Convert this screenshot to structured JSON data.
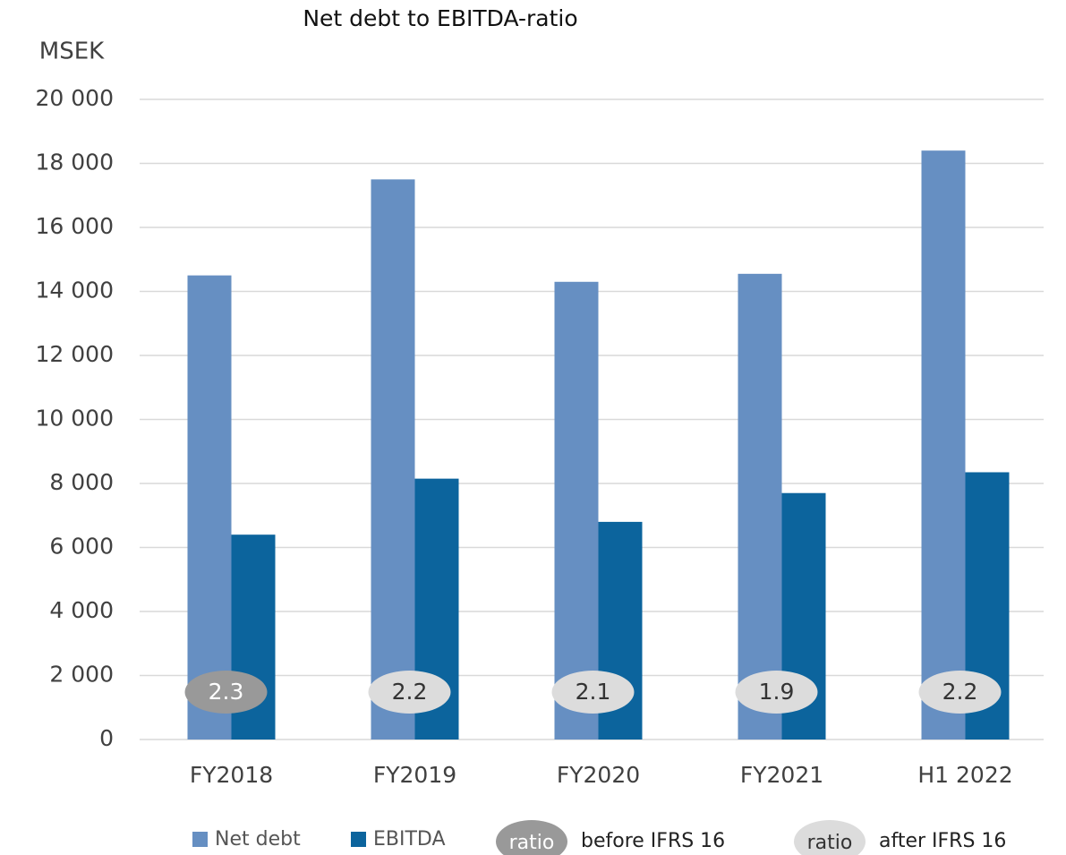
{
  "chart_data": {
    "type": "bar",
    "title": "Net debt to EBITDA-ratio",
    "y_label": "MSEK",
    "categories": [
      "FY2018",
      "FY2019",
      "FY2020",
      "FY2021",
      "H1 2022"
    ],
    "series": [
      {
        "name": "Net debt",
        "color": "#668fc2",
        "values": [
          14500,
          17500,
          14300,
          14550,
          18400
        ]
      },
      {
        "name": "EBITDA",
        "color": "#0c649d",
        "values": [
          6400,
          8150,
          6800,
          7700,
          8350
        ]
      }
    ],
    "ratios": [
      2.3,
      2.2,
      2.1,
      1.9,
      2.2
    ],
    "ratio_kinds": [
      0,
      1,
      1,
      1,
      1
    ],
    "ratio_legend": [
      {
        "label": "ratio",
        "name": "before IFRS 16",
        "color": "#999999",
        "text_color": "#ffffff"
      },
      {
        "label": "ratio",
        "name": "after IFRS 16",
        "color": "#dcdcdc",
        "text_color": "#333333"
      }
    ],
    "ylim": [
      0,
      20000
    ],
    "yticks": [
      0,
      {
        "value": 2000,
        "label": "2 000"
      },
      {
        "value": 4000,
        "label": "4 000"
      },
      {
        "value": 6000,
        "label": "6 000"
      },
      {
        "value": 8000,
        "label": "8 000"
      },
      {
        "value": 10000,
        "label": "10 000"
      },
      {
        "value": 12000,
        "label": "12 000"
      },
      {
        "value": 14000,
        "label": "14 000"
      },
      {
        "value": 16000,
        "label": "16 000"
      },
      {
        "value": 18000,
        "label": "18 000"
      },
      {
        "value": 20000,
        "label": "20 000"
      }
    ],
    "grid": true
  }
}
